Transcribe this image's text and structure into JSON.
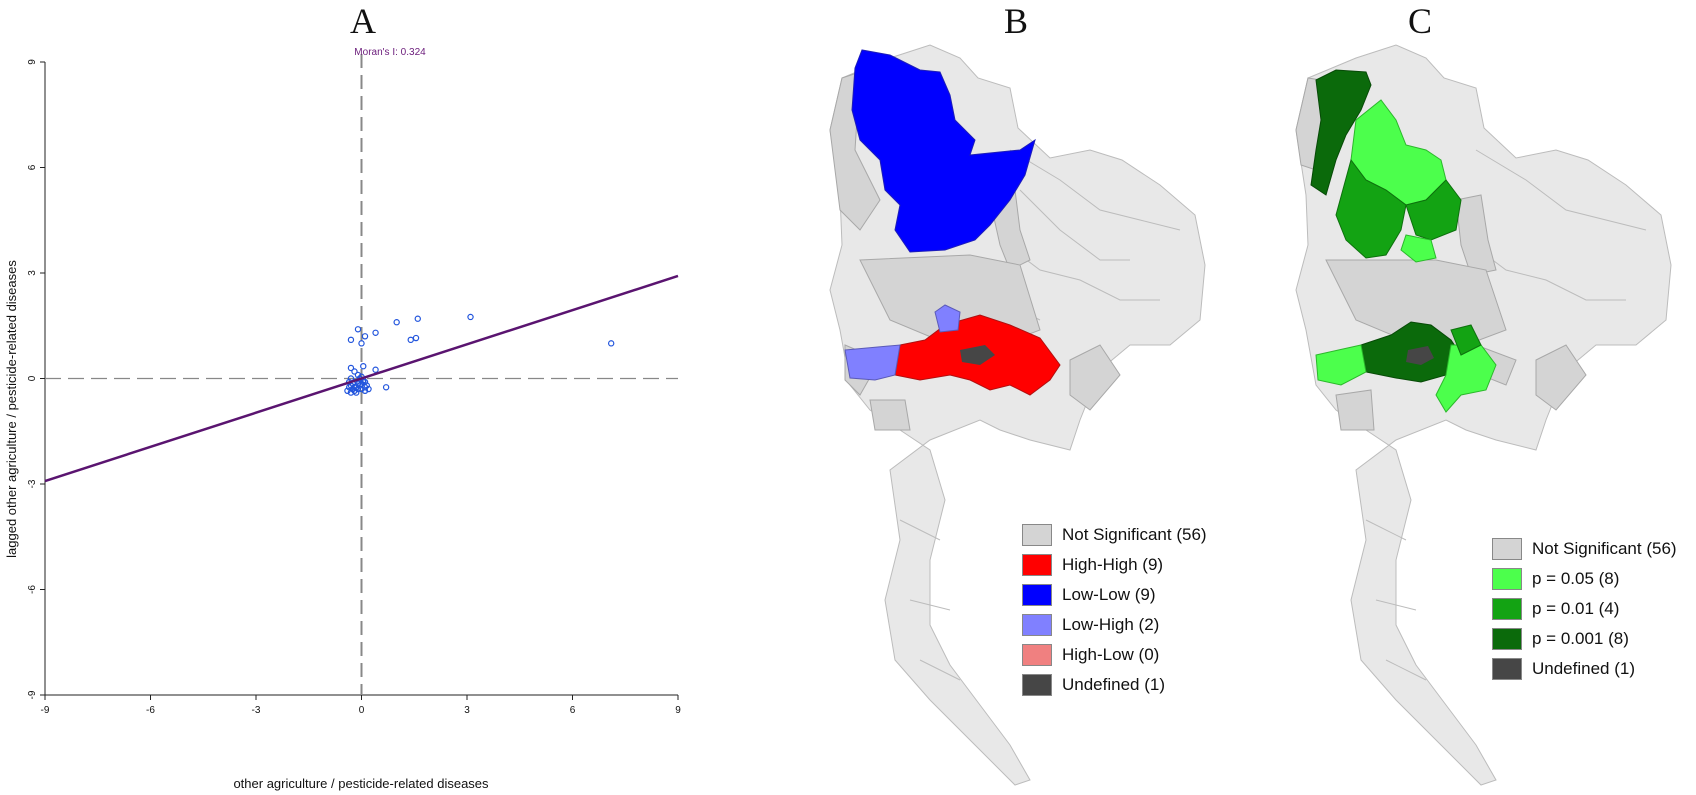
{
  "panels": {
    "a": "A",
    "b": "B",
    "c": "C"
  },
  "chart_data": [
    {
      "type": "scatter",
      "annotation": "Moran's I: 0.324",
      "xlabel": "other agriculture / pesticide-related diseases",
      "ylabel": "lagged other agriculture / pesticide-related diseases",
      "xlim": [
        -9,
        9
      ],
      "ylim": [
        -9,
        9
      ],
      "xticks": [
        "-9",
        "-6",
        "-3",
        "0",
        "3",
        "6",
        "9"
      ],
      "yticks": [
        "-9",
        "-6",
        "-3",
        "0",
        "3",
        "6",
        "9"
      ],
      "regression": {
        "slope": 0.324,
        "intercept": 0.0
      },
      "points": [
        [
          -0.3,
          1.1
        ],
        [
          -0.1,
          1.4
        ],
        [
          0.0,
          1.0
        ],
        [
          0.1,
          1.2
        ],
        [
          0.4,
          1.3
        ],
        [
          1.0,
          1.6
        ],
        [
          1.4,
          1.1
        ],
        [
          1.55,
          1.15
        ],
        [
          1.6,
          1.7
        ],
        [
          3.1,
          1.75
        ],
        [
          7.1,
          1.0
        ],
        [
          0.05,
          0.35
        ],
        [
          0.4,
          0.25
        ],
        [
          0.7,
          -0.25
        ],
        [
          -0.3,
          0.3
        ],
        [
          -0.2,
          0.2
        ],
        [
          -0.1,
          0.1
        ],
        [
          -0.35,
          -0.1
        ],
        [
          -0.3,
          -0.2
        ],
        [
          -0.25,
          -0.3
        ],
        [
          -0.2,
          -0.35
        ],
        [
          -0.15,
          -0.25
        ],
        [
          -0.1,
          -0.15
        ],
        [
          -0.05,
          -0.2
        ],
        [
          0.0,
          -0.3
        ],
        [
          0.05,
          -0.1
        ],
        [
          0.1,
          -0.25
        ],
        [
          -0.4,
          -0.35
        ],
        [
          -0.3,
          -0.4
        ],
        [
          -0.2,
          -0.1
        ],
        [
          -0.1,
          -0.3
        ],
        [
          0.0,
          -0.15
        ],
        [
          0.1,
          -0.35
        ],
        [
          0.15,
          -0.2
        ],
        [
          -0.35,
          -0.25
        ],
        [
          -0.25,
          -0.15
        ],
        [
          -0.15,
          -0.4
        ],
        [
          0.05,
          -0.05
        ],
        [
          -0.05,
          0.0
        ],
        [
          0.2,
          -0.3
        ],
        [
          -0.3,
          0.0
        ],
        [
          -0.2,
          -0.25
        ],
        [
          0.0,
          0.05
        ],
        [
          0.1,
          -0.1
        ]
      ],
      "colors": {
        "points": "#2255dd",
        "line": "#5a1470",
        "dashed": "#888888",
        "annotation": "#6a1b7a"
      }
    },
    {
      "type": "map",
      "legend": [
        {
          "label": "Not Significant (56)",
          "color": "#d4d4d4"
        },
        {
          "label": "High-High (9)",
          "color": "#ff0000"
        },
        {
          "label": "Low-Low (9)",
          "color": "#0000ff"
        },
        {
          "label": "Low-High (2)",
          "color": "#8080ff"
        },
        {
          "label": "High-Low (0)",
          "color": "#f08080"
        },
        {
          "label": "Undefined (1)",
          "color": "#464646"
        }
      ]
    },
    {
      "type": "map",
      "legend": [
        {
          "label": "Not Significant (56)",
          "color": "#d4d4d4"
        },
        {
          "label": "p = 0.05 (8)",
          "color": "#4cff4c"
        },
        {
          "label": "p = 0.01 (4)",
          "color": "#13a313"
        },
        {
          "label": "p = 0.001 (8)",
          "color": "#0b6a0b"
        },
        {
          "label": "Undefined (1)",
          "color": "#464646"
        }
      ]
    }
  ],
  "map_colors": {
    "base": "#e8e8e8",
    "stroke": "#bcbcbc",
    "notsig": "#d4d4d4"
  }
}
